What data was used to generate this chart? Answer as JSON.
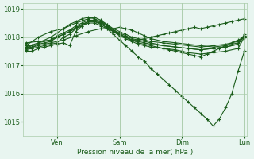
{
  "background_color": "#e8f5f0",
  "plot_bg_color": "#e8f5f0",
  "line_color": "#1a5c1a",
  "grid_color": "#aaccaa",
  "tick_color": "#1a5c1a",
  "label_color": "#1a5c1a",
  "xlabel": "Pression niveau de la mer( hPa )",
  "ylim": [
    1014.5,
    1019.2
  ],
  "yticks": [
    1015,
    1016,
    1017,
    1018,
    1019
  ],
  "day_positions": [
    0.25,
    0.75,
    1.25,
    1.75
  ],
  "day_labels": [
    "Ven",
    "Sam",
    "Dim",
    "Lun"
  ],
  "series": [
    [
      0.0,
      1017.6,
      0.05,
      1017.7,
      0.1,
      1017.75,
      0.15,
      1017.8,
      0.2,
      1017.85,
      0.25,
      1018.0,
      0.3,
      1018.1,
      0.35,
      1018.2,
      0.4,
      1018.3,
      0.45,
      1018.4,
      0.5,
      1018.5,
      0.55,
      1018.5,
      0.6,
      1018.4,
      0.65,
      1018.3,
      0.7,
      1018.2,
      0.75,
      1018.1,
      0.8,
      1018.0,
      0.85,
      1017.9,
      0.9,
      1017.9,
      0.95,
      1017.95,
      1.0,
      1018.0,
      1.05,
      1018.05,
      1.1,
      1018.1,
      1.15,
      1018.15,
      1.2,
      1018.2,
      1.25,
      1018.25,
      1.3,
      1018.3,
      1.35,
      1018.35,
      1.4,
      1018.3,
      1.45,
      1018.35,
      1.5,
      1018.4,
      1.55,
      1018.45,
      1.6,
      1018.5,
      1.65,
      1018.55,
      1.7,
      1018.6,
      1.75,
      1018.65
    ],
    [
      0.0,
      1017.5,
      0.05,
      1017.5,
      0.1,
      1017.6,
      0.15,
      1017.65,
      0.2,
      1017.7,
      0.25,
      1017.75,
      0.3,
      1017.8,
      0.35,
      1017.7,
      0.4,
      1018.2,
      0.45,
      1018.4,
      0.5,
      1018.55,
      0.55,
      1018.6,
      0.6,
      1018.5,
      0.65,
      1018.3,
      0.7,
      1018.1,
      0.75,
      1017.9,
      0.8,
      1017.7,
      0.85,
      1017.5,
      0.9,
      1017.3,
      0.95,
      1017.15,
      1.0,
      1016.9,
      1.05,
      1016.7,
      1.1,
      1016.5,
      1.15,
      1016.3,
      1.2,
      1016.1,
      1.25,
      1015.9,
      1.3,
      1015.7,
      1.35,
      1015.5,
      1.4,
      1015.3,
      1.45,
      1015.1,
      1.5,
      1014.85,
      1.55,
      1015.1,
      1.6,
      1015.5,
      1.65,
      1016.0,
      1.7,
      1016.8,
      1.75,
      1017.5
    ],
    [
      0.0,
      1017.55,
      0.05,
      1017.6,
      0.1,
      1017.65,
      0.15,
      1017.7,
      0.2,
      1017.75,
      0.25,
      1017.8,
      0.3,
      1018.0,
      0.35,
      1018.1,
      0.4,
      1018.3,
      0.45,
      1018.45,
      0.5,
      1018.55,
      0.55,
      1018.55,
      0.6,
      1018.45,
      0.65,
      1018.35,
      0.7,
      1018.2,
      0.75,
      1018.1,
      0.8,
      1018.0,
      0.85,
      1017.9,
      0.9,
      1017.8,
      0.95,
      1017.75,
      1.0,
      1017.7,
      1.05,
      1017.65,
      1.1,
      1017.6,
      1.15,
      1017.55,
      1.2,
      1017.5,
      1.25,
      1017.45,
      1.3,
      1017.4,
      1.35,
      1017.35,
      1.4,
      1017.3,
      1.45,
      1017.4,
      1.5,
      1017.5,
      1.55,
      1017.6,
      1.6,
      1017.7,
      1.65,
      1017.8,
      1.7,
      1017.9,
      1.75,
      1018.0
    ],
    [
      0.0,
      1017.6,
      0.1,
      1017.7,
      0.2,
      1017.8,
      0.3,
      1017.9,
      0.4,
      1018.05,
      0.5,
      1018.2,
      0.6,
      1018.3,
      0.7,
      1018.3,
      0.75,
      1018.35,
      0.8,
      1018.3,
      0.85,
      1018.25,
      0.9,
      1018.15,
      0.95,
      1018.05,
      1.0,
      1017.95,
      1.1,
      1017.85,
      1.2,
      1017.8,
      1.3,
      1017.75,
      1.4,
      1017.7,
      1.5,
      1017.65,
      1.6,
      1017.7,
      1.7,
      1017.8,
      1.75,
      1018.0
    ],
    [
      0.0,
      1017.65,
      0.1,
      1017.8,
      0.2,
      1017.9,
      0.25,
      1018.05,
      0.3,
      1018.15,
      0.35,
      1018.25,
      0.4,
      1018.4,
      0.45,
      1018.5,
      0.5,
      1018.6,
      0.55,
      1018.6,
      0.6,
      1018.55,
      0.65,
      1018.45,
      0.7,
      1018.3,
      0.75,
      1018.2,
      0.8,
      1018.1,
      0.85,
      1018.0,
      0.9,
      1017.95,
      0.95,
      1017.9,
      1.0,
      1017.85,
      1.1,
      1017.8,
      1.2,
      1017.75,
      1.3,
      1017.7,
      1.4,
      1017.65,
      1.5,
      1017.7,
      1.6,
      1017.75,
      1.7,
      1017.85,
      1.75,
      1018.05
    ],
    [
      0.0,
      1017.7,
      0.1,
      1018.0,
      0.2,
      1018.2,
      0.3,
      1018.3,
      0.4,
      1018.5,
      0.5,
      1018.65,
      0.55,
      1018.7,
      0.6,
      1018.6,
      0.65,
      1018.45,
      0.7,
      1018.25,
      0.75,
      1018.1,
      0.8,
      1018.0,
      0.85,
      1017.9,
      0.9,
      1017.85,
      0.95,
      1017.8,
      1.0,
      1017.75,
      1.1,
      1017.7,
      1.2,
      1017.65,
      1.3,
      1017.6,
      1.4,
      1017.55,
      1.5,
      1017.6,
      1.6,
      1017.65,
      1.7,
      1017.75,
      1.75,
      1018.1
    ],
    [
      0.0,
      1017.75,
      0.05,
      1017.6,
      0.1,
      1017.8,
      0.2,
      1018.0,
      0.25,
      1018.15,
      0.3,
      1018.3,
      0.35,
      1018.45,
      0.4,
      1018.55,
      0.45,
      1018.65,
      0.5,
      1018.7,
      0.55,
      1018.65,
      0.6,
      1018.55,
      0.65,
      1018.4,
      0.7,
      1018.2,
      0.75,
      1018.05,
      0.8,
      1017.95,
      0.85,
      1017.85,
      0.9,
      1017.75,
      0.95,
      1017.7,
      1.0,
      1017.65,
      1.1,
      1017.6,
      1.2,
      1017.55,
      1.25,
      1017.5,
      1.3,
      1017.45,
      1.4,
      1017.4,
      1.5,
      1017.45,
      1.6,
      1017.5,
      1.7,
      1017.6,
      1.75,
      1018.0
    ],
    [
      0.0,
      1017.8,
      0.1,
      1017.85,
      0.2,
      1017.9,
      0.25,
      1018.0,
      0.3,
      1018.1,
      0.35,
      1018.2,
      0.4,
      1018.35,
      0.45,
      1018.45,
      0.5,
      1018.55,
      0.55,
      1018.55,
      0.6,
      1018.5,
      0.65,
      1018.4,
      0.7,
      1018.25,
      0.75,
      1018.15,
      0.8,
      1018.05,
      0.85,
      1017.95,
      0.9,
      1017.9,
      0.95,
      1017.85,
      1.0,
      1017.8,
      1.05,
      1017.75,
      1.1,
      1017.7,
      1.2,
      1017.65,
      1.3,
      1017.6,
      1.4,
      1017.55,
      1.5,
      1017.6,
      1.6,
      1017.65,
      1.7,
      1017.75,
      1.75,
      1018.05
    ]
  ]
}
